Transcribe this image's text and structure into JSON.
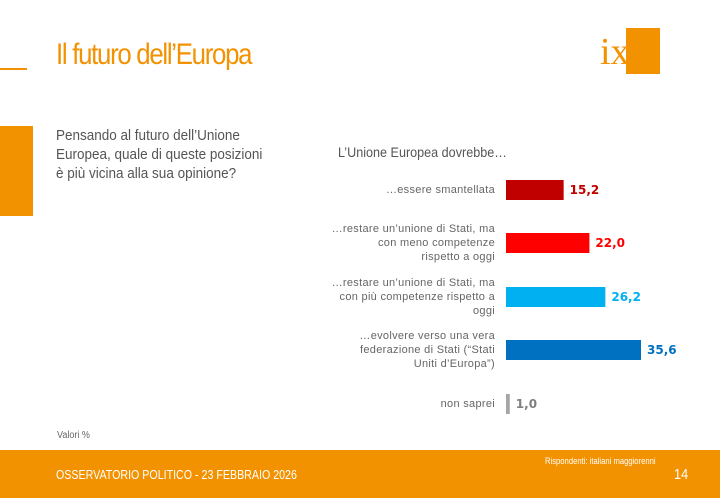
{
  "slide": {
    "title": "Il futuro dell’Europa",
    "question": "Pensando al futuro dell’Unione Europea, quale di queste posizioni è più vicina alla sua opinione?",
    "note": "Valori %",
    "logo_text": "ixè"
  },
  "footer": {
    "left": "OSSERVATORIO POLITICO - 23 FEBBRAIO 2026",
    "respondents": "Rispondenti: italiani maggiorenni",
    "page": "14"
  },
  "colors": {
    "accent": "#f39200"
  },
  "chart_data": {
    "type": "bar",
    "orientation": "horizontal",
    "title": "L’Unione Europea dovrebbe…",
    "categories": [
      "…essere smantellata",
      "…restare un’unione di Stati, ma con meno competenze rispetto a oggi",
      "…restare un’unione di Stati, ma con più competenze rispetto a oggi",
      "…evolvere verso una vera federazione di Stati (“Stati Uniti d’Europa”)",
      "non saprei"
    ],
    "values": [
      15.2,
      22.0,
      26.2,
      35.6,
      1.0
    ],
    "value_labels": [
      "15,2",
      "22,0",
      "26,2",
      "35,6",
      "1,0"
    ],
    "colors": [
      "#c00000",
      "#ff0000",
      "#00b0f0",
      "#0070c0",
      "#a6a6a6"
    ],
    "label_colors": [
      "#c00000",
      "#ff0000",
      "#00b0f0",
      "#0070c0",
      "#7f7f7f"
    ],
    "xlim": [
      0,
      40
    ]
  }
}
